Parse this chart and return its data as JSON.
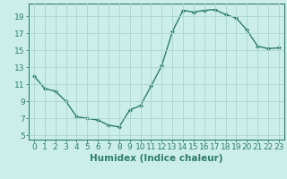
{
  "x": [
    0,
    1,
    2,
    3,
    4,
    5,
    6,
    7,
    8,
    9,
    10,
    11,
    12,
    13,
    14,
    15,
    16,
    17,
    18,
    19,
    20,
    21,
    22,
    23
  ],
  "y": [
    12.0,
    10.5,
    10.2,
    9.0,
    7.2,
    7.0,
    6.8,
    6.2,
    6.0,
    8.0,
    8.5,
    10.8,
    13.2,
    17.2,
    19.7,
    19.5,
    19.7,
    19.8,
    19.2,
    18.8,
    17.4,
    15.5,
    15.2,
    15.3
  ],
  "line_color": "#2e7d6e",
  "marker_color": "#2e7d6e",
  "bg_color": "#cceee8",
  "grid_color": "#aad4ce",
  "xlabel": "Humidex (Indice chaleur)",
  "xlim": [
    -0.5,
    23.5
  ],
  "ylim": [
    4.5,
    20.5
  ],
  "yticks": [
    5,
    7,
    9,
    11,
    13,
    15,
    17,
    19
  ],
  "xticks": [
    0,
    1,
    2,
    3,
    4,
    5,
    6,
    7,
    8,
    9,
    10,
    11,
    12,
    13,
    14,
    15,
    16,
    17,
    18,
    19,
    20,
    21,
    22,
    23
  ],
  "xtick_labels": [
    "0",
    "1",
    "2",
    "3",
    "4",
    "5",
    "6",
    "7",
    "8",
    "9",
    "10",
    "11",
    "12",
    "13",
    "14",
    "15",
    "16",
    "17",
    "18",
    "19",
    "20",
    "21",
    "22",
    "23"
  ],
  "xlabel_color": "#2e7d6e",
  "tick_color": "#2e7d6e",
  "tick_fontsize": 6.5,
  "label_fontsize": 7.5
}
